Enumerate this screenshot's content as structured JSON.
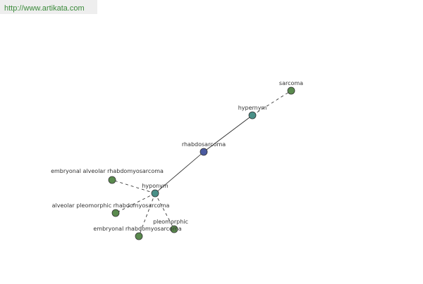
{
  "header": {
    "url": "http://www.artikata.com"
  },
  "nodes": [
    {
      "label": "rhabdosarcoma"
    },
    {
      "label": "hypernym"
    },
    {
      "label": "sarcoma"
    },
    {
      "label": "hyponym"
    },
    {
      "label": "embryonal alveolar rhabdomyosarcoma"
    },
    {
      "label": "alveolar pleomorphic rhabdomyosarcoma"
    },
    {
      "label": "embryonal rhabdomyosarcoma"
    },
    {
      "label": "pleomorphic"
    }
  ]
}
